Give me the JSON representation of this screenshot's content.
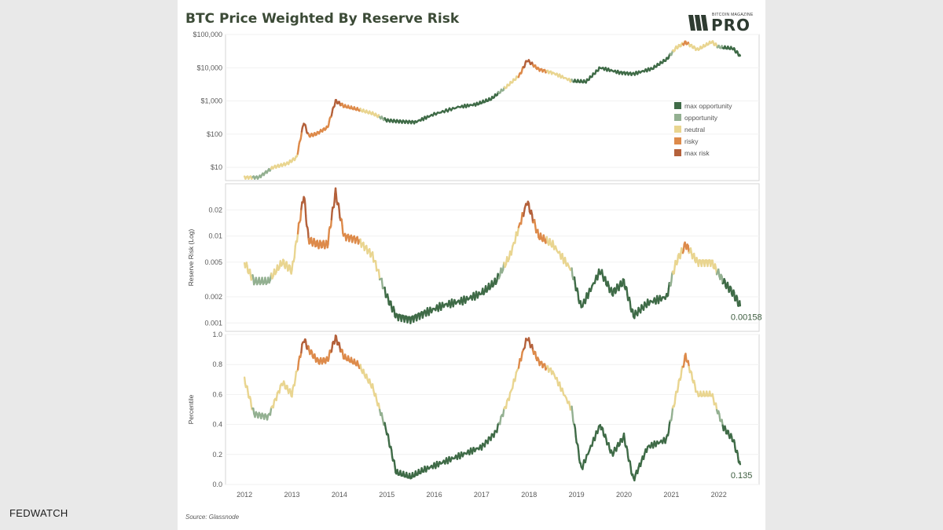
{
  "title": "BTC Price Weighted By Reserve Risk",
  "logo": {
    "small_text": "BITCOIN MAGAZINE",
    "big_text": "PRO"
  },
  "source": "Source: Glassnode",
  "watermark": "FEDWATCH",
  "colors": {
    "max opportunity": "#3f6b47",
    "opportunity": "#93b091",
    "neutral": "#e9d590",
    "risky": "#dd8a4a",
    "max risk": "#b4613b"
  },
  "chart_data": [
    {
      "type": "line",
      "title": "",
      "ylabel": "",
      "yscale": "log",
      "ylim": [
        4,
        100000
      ],
      "yticks": [
        10,
        100,
        1000,
        10000,
        100000
      ],
      "ytick_labels": [
        "$10",
        "$100",
        "$1,000",
        "$10,000",
        "$100,000"
      ],
      "x": [
        2012.0,
        2012.3,
        2012.6,
        2012.9,
        2013.1,
        2013.25,
        2013.35,
        2013.5,
        2013.75,
        2013.92,
        2014.1,
        2014.4,
        2014.7,
        2015.0,
        2015.3,
        2015.6,
        2016.0,
        2016.5,
        2016.9,
        2017.2,
        2017.5,
        2017.8,
        2017.96,
        2018.2,
        2018.5,
        2018.9,
        2019.2,
        2019.5,
        2019.9,
        2020.2,
        2020.6,
        2020.9,
        2021.1,
        2021.3,
        2021.55,
        2021.85,
        2022.0,
        2022.3,
        2022.45
      ],
      "series": [
        {
          "values": [
            5,
            5,
            10,
            13,
            20,
            230,
            90,
            100,
            160,
            1000,
            700,
            550,
            420,
            260,
            240,
            230,
            400,
            650,
            800,
            1150,
            2500,
            6000,
            17000,
            9000,
            7000,
            4000,
            3800,
            10000,
            7200,
            6500,
            9500,
            18000,
            40000,
            58000,
            35000,
            60000,
            42000,
            38000,
            23000
          ],
          "zones": [
            "neutral",
            "neutral",
            "neutral",
            "neutral",
            "risky",
            "max risk",
            "risky",
            "neutral",
            "risky",
            "max risk",
            "risky",
            "neutral",
            "neutral",
            "max opportunity",
            "max opportunity",
            "max opportunity",
            "max opportunity",
            "max opportunity",
            "max opportunity",
            "max opportunity",
            "neutral",
            "risky",
            "max risk",
            "risky",
            "neutral",
            "max opportunity",
            "max opportunity",
            "neutral",
            "max opportunity",
            "max opportunity",
            "max opportunity",
            "max opportunity",
            "neutral",
            "neutral",
            "neutral",
            "neutral",
            "neutral",
            "opportunity",
            "max opportunity"
          ]
        }
      ],
      "legend": [
        "max opportunity",
        "opportunity",
        "neutral",
        "risky",
        "max risk"
      ],
      "legend_position": "right"
    },
    {
      "type": "line",
      "title": "",
      "ylabel": "Reserve Risk (Log)",
      "yscale": "log",
      "ylim": [
        0.0008,
        0.04
      ],
      "yticks": [
        0.001,
        0.002,
        0.005,
        0.01,
        0.02
      ],
      "ytick_labels": [
        "0.001",
        "0.002",
        "0.005",
        "0.01",
        "0.02"
      ],
      "x": [
        2012.0,
        2012.2,
        2012.5,
        2012.8,
        2013.0,
        2013.25,
        2013.35,
        2013.55,
        2013.75,
        2013.92,
        2014.1,
        2014.4,
        2014.7,
        2015.0,
        2015.2,
        2015.5,
        2015.8,
        2016.2,
        2016.6,
        2017.0,
        2017.3,
        2017.6,
        2017.96,
        2018.2,
        2018.5,
        2018.9,
        2019.1,
        2019.5,
        2019.75,
        2020.0,
        2020.2,
        2020.5,
        2020.9,
        2021.1,
        2021.3,
        2021.55,
        2021.85,
        2022.1,
        2022.3,
        2022.45
      ],
      "series": [
        {
          "values": [
            0.005,
            0.003,
            0.003,
            0.005,
            0.004,
            0.03,
            0.009,
            0.008,
            0.008,
            0.032,
            0.01,
            0.009,
            0.006,
            0.002,
            0.0012,
            0.0011,
            0.0013,
            0.0016,
            0.0018,
            0.0022,
            0.003,
            0.006,
            0.025,
            0.01,
            0.008,
            0.004,
            0.0015,
            0.004,
            0.0022,
            0.003,
            0.0012,
            0.0017,
            0.002,
            0.005,
            0.008,
            0.005,
            0.005,
            0.003,
            0.0022,
            0.00158
          ]
        }
      ],
      "end_label": "0.00158"
    },
    {
      "type": "line",
      "title": "",
      "ylabel": "Percentile",
      "ylim": [
        0,
        1
      ],
      "yticks": [
        0.0,
        0.2,
        0.4,
        0.6,
        0.8,
        1.0
      ],
      "ytick_labels": [
        "0.0",
        "0.2",
        "0.4",
        "0.6",
        "0.8",
        "1.0"
      ],
      "xticks": [
        2012,
        2013,
        2014,
        2015,
        2016,
        2017,
        2018,
        2019,
        2020,
        2021,
        2022
      ],
      "x": [
        2012.0,
        2012.2,
        2012.5,
        2012.8,
        2013.0,
        2013.25,
        2013.35,
        2013.55,
        2013.75,
        2013.92,
        2014.1,
        2014.4,
        2014.7,
        2015.0,
        2015.2,
        2015.5,
        2015.8,
        2016.2,
        2016.6,
        2017.0,
        2017.3,
        2017.6,
        2017.96,
        2018.2,
        2018.5,
        2018.9,
        2019.1,
        2019.5,
        2019.75,
        2020.0,
        2020.2,
        2020.5,
        2020.9,
        2021.1,
        2021.3,
        2021.55,
        2021.85,
        2022.1,
        2022.3,
        2022.45
      ],
      "series": [
        {
          "values": [
            0.7,
            0.47,
            0.45,
            0.68,
            0.6,
            0.97,
            0.9,
            0.82,
            0.83,
            0.98,
            0.85,
            0.8,
            0.65,
            0.35,
            0.08,
            0.05,
            0.1,
            0.15,
            0.2,
            0.25,
            0.35,
            0.6,
            0.98,
            0.82,
            0.75,
            0.5,
            0.1,
            0.4,
            0.2,
            0.32,
            0.03,
            0.25,
            0.3,
            0.6,
            0.86,
            0.6,
            0.6,
            0.38,
            0.3,
            0.135
          ]
        }
      ],
      "end_label": "0.135"
    }
  ]
}
